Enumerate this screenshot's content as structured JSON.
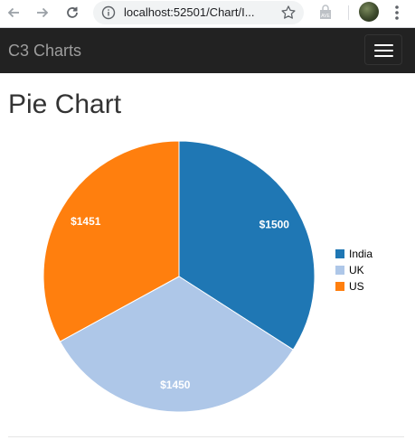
{
  "browser": {
    "url": "localhost:52501/Chart/I...",
    "icons": [
      "back-arrow",
      "forward-arrow",
      "reload",
      "info",
      "star",
      "extension",
      "profile-avatar",
      "more-vert"
    ]
  },
  "navbar": {
    "brand": "C3 Charts",
    "toggle_icon": "hamburger-icon"
  },
  "page": {
    "title": "Pie Chart"
  },
  "colors": {
    "india": "#1f77b4",
    "uk": "#aec7e8",
    "us": "#ff7f0e",
    "navbar": "#222222"
  },
  "chart_data": {
    "type": "pie",
    "title": "",
    "labels": [
      "India",
      "UK",
      "US"
    ],
    "values": [
      1500,
      1450,
      1451
    ],
    "display_labels": [
      "$1500",
      "$1450",
      "$1451"
    ],
    "colors": [
      "#1f77b4",
      "#aec7e8",
      "#ff7f0e"
    ],
    "legend": "right",
    "legend_order": [
      "India",
      "UK",
      "US"
    ]
  }
}
